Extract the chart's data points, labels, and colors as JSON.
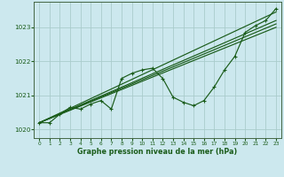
{
  "bg_color": "#cce8ee",
  "grid_color": "#aacccc",
  "line_color": "#1a5c1a",
  "xlabel": "Graphe pression niveau de la mer (hPa)",
  "ylim": [
    1019.75,
    1023.75
  ],
  "xlim": [
    -0.5,
    23.5
  ],
  "yticks": [
    1020,
    1021,
    1022,
    1023
  ],
  "xticks": [
    0,
    1,
    2,
    3,
    4,
    5,
    6,
    7,
    8,
    9,
    10,
    11,
    12,
    13,
    14,
    15,
    16,
    17,
    18,
    19,
    20,
    21,
    22,
    23
  ],
  "series_main": [
    [
      0,
      1020.2
    ],
    [
      1,
      1020.2
    ],
    [
      2,
      1020.45
    ],
    [
      3,
      1020.65
    ],
    [
      4,
      1020.6
    ],
    [
      5,
      1020.75
    ],
    [
      6,
      1020.85
    ],
    [
      7,
      1020.6
    ],
    [
      8,
      1021.5
    ],
    [
      9,
      1021.65
    ],
    [
      10,
      1021.75
    ],
    [
      11,
      1021.8
    ],
    [
      12,
      1021.5
    ],
    [
      13,
      1020.95
    ],
    [
      14,
      1020.8
    ],
    [
      15,
      1020.7
    ],
    [
      16,
      1020.85
    ],
    [
      17,
      1021.25
    ],
    [
      18,
      1021.75
    ],
    [
      19,
      1022.15
    ],
    [
      20,
      1022.85
    ],
    [
      21,
      1023.05
    ],
    [
      22,
      1023.2
    ],
    [
      23,
      1023.55
    ]
  ],
  "series_smooth1": [
    [
      0,
      1020.2
    ],
    [
      23,
      1023.45
    ]
  ],
  "series_smooth2": [
    [
      0,
      1020.2
    ],
    [
      23,
      1023.2
    ]
  ],
  "series_smooth3": [
    [
      0,
      1020.2
    ],
    [
      23,
      1023.1
    ]
  ],
  "series_smooth4": [
    [
      0,
      1020.2
    ],
    [
      23,
      1023.0
    ]
  ]
}
